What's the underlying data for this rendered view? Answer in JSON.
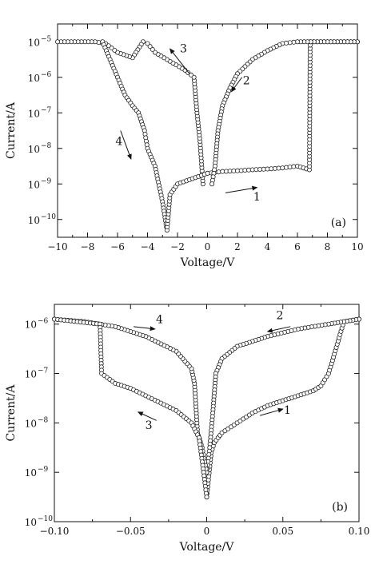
{
  "chart_data": [
    {
      "type": "scatter",
      "panel_label": "(a)",
      "xlabel": "Voltage/V",
      "ylabel": "Current/A",
      "xlim": [
        -10,
        10
      ],
      "ylim": [
        -10.5,
        -4.5
      ],
      "yscale": "log",
      "x_ticks": [
        -10,
        -8,
        -6,
        -4,
        -2,
        0,
        2,
        4,
        6,
        8,
        10
      ],
      "x_tick_labels": [
        "−10",
        "−8",
        "−6",
        "−4",
        "−2",
        "0",
        "2",
        "4",
        "6",
        "8",
        "10"
      ],
      "y_ticks": [
        -10,
        -9,
        -8,
        -7,
        -6,
        -5
      ],
      "y_tick_labels": [
        "10",
        "10",
        "10",
        "10",
        "10",
        "10"
      ],
      "y_tick_exponents": [
        "−10",
        "−9",
        "−8",
        "−7",
        "−6",
        "−5"
      ],
      "grid": false,
      "marker": "open-circle",
      "series": [
        {
          "points": [
            [
              0,
              -8.7
            ],
            [
              1,
              -8.65
            ],
            [
              2,
              -8.63
            ],
            [
              3,
              -8.6
            ],
            [
              4,
              -8.58
            ],
            [
              5,
              -8.55
            ],
            [
              6,
              -8.5
            ],
            [
              6.8,
              -8.6
            ],
            [
              6.85,
              -5.0
            ],
            [
              8,
              -5.0
            ],
            [
              10,
              -5.0
            ]
          ]
        },
        {
          "points": [
            [
              10,
              -5.0
            ],
            [
              6,
              -5.0
            ],
            [
              5,
              -5.05
            ],
            [
              4,
              -5.25
            ],
            [
              3,
              -5.5
            ],
            [
              2,
              -5.9
            ],
            [
              1.5,
              -6.3
            ],
            [
              1,
              -6.8
            ],
            [
              0.7,
              -7.5
            ],
            [
              0.5,
              -8.5
            ],
            [
              0.3,
              -9.0
            ]
          ]
        },
        {
          "points": [
            [
              -0.3,
              -9.0
            ],
            [
              -0.5,
              -7.8
            ],
            [
              -0.7,
              -7.0
            ],
            [
              -0.9,
              -6.0
            ],
            [
              -1.5,
              -5.8
            ],
            [
              -2.5,
              -5.55
            ],
            [
              -3.5,
              -5.3
            ],
            [
              -4.0,
              -5.05
            ],
            [
              -4.3,
              -5.0
            ],
            [
              -5.0,
              -5.45
            ],
            [
              -6.0,
              -5.3
            ],
            [
              -6.8,
              -5.05
            ],
            [
              -7.5,
              -5.0
            ],
            [
              -10,
              -5.0
            ]
          ]
        },
        {
          "points": [
            [
              -7.0,
              -5.0
            ],
            [
              -6.5,
              -5.5
            ],
            [
              -6.0,
              -6.0
            ],
            [
              -5.5,
              -6.5
            ],
            [
              -5.0,
              -6.8
            ],
            [
              -4.6,
              -7.0
            ],
            [
              -4.2,
              -7.5
            ],
            [
              -4.0,
              -8.0
            ],
            [
              -3.5,
              -8.5
            ],
            [
              -3.0,
              -9.5
            ],
            [
              -2.7,
              -10.3
            ],
            [
              -2.5,
              -9.3
            ],
            [
              -2.0,
              -9.0
            ],
            [
              -1.0,
              -8.85
            ],
            [
              0,
              -8.7
            ]
          ]
        }
      ],
      "annotations": [
        {
          "text": "1",
          "x": 3.3,
          "y": -9.47,
          "arrow_from": [
            1.2,
            -9.25
          ],
          "arrow_to": [
            3.3,
            -9.1
          ]
        },
        {
          "text": "2",
          "x": 2.6,
          "y": -6.2,
          "arrow_from": [
            2.3,
            -6.0
          ],
          "arrow_to": [
            1.6,
            -6.4
          ]
        },
        {
          "text": "3",
          "x": -1.6,
          "y": -5.3,
          "arrow_from": [
            -1.2,
            -5.9
          ],
          "arrow_to": [
            -2.5,
            -5.2
          ]
        },
        {
          "text": "4",
          "x": -5.9,
          "y": -7.9,
          "arrow_from": [
            -5.8,
            -7.5
          ],
          "arrow_to": [
            -5.1,
            -8.3
          ]
        }
      ]
    },
    {
      "type": "scatter",
      "panel_label": "(b)",
      "xlabel": "Voltage/V",
      "ylabel": "Current/A",
      "xlim": [
        -0.1,
        0.1
      ],
      "ylim": [
        -10,
        -5.6
      ],
      "yscale": "log",
      "x_ticks": [
        -0.1,
        -0.05,
        0,
        0.05,
        0.1
      ],
      "x_tick_labels": [
        "−0.10",
        "−0.05",
        "0",
        "0.05",
        "0.10"
      ],
      "y_ticks": [
        -10,
        -9,
        -8,
        -7,
        -6
      ],
      "y_tick_labels": [
        "10",
        "10",
        "10",
        "10",
        "10"
      ],
      "y_tick_exponents": [
        "−10",
        "−9",
        "−8",
        "−7",
        "−6"
      ],
      "grid": false,
      "marker": "open-circle",
      "series": [
        {
          "points": [
            [
              0,
              -9.5
            ],
            [
              0.003,
              -8.6
            ],
            [
              0.005,
              -8.4
            ],
            [
              0.01,
              -8.2
            ],
            [
              0.02,
              -8.0
            ],
            [
              0.03,
              -7.8
            ],
            [
              0.04,
              -7.65
            ],
            [
              0.05,
              -7.55
            ],
            [
              0.06,
              -7.45
            ],
            [
              0.07,
              -7.35
            ],
            [
              0.075,
              -7.25
            ],
            [
              0.08,
              -7.0
            ],
            [
              0.082,
              -6.8
            ],
            [
              0.09,
              -5.95
            ],
            [
              0.1,
              -5.9
            ]
          ]
        },
        {
          "points": [
            [
              0.1,
              -5.9
            ],
            [
              0.09,
              -5.95
            ],
            [
              0.08,
              -6.0
            ],
            [
              0.06,
              -6.1
            ],
            [
              0.04,
              -6.25
            ],
            [
              0.02,
              -6.45
            ],
            [
              0.01,
              -6.7
            ],
            [
              0.006,
              -7.0
            ],
            [
              0.004,
              -7.8
            ],
            [
              0.002,
              -8.5
            ],
            [
              0.0,
              -9.0
            ]
          ]
        },
        {
          "points": [
            [
              0.0,
              -9.0
            ],
            [
              -0.003,
              -8.5
            ],
            [
              -0.006,
              -8.2
            ],
            [
              -0.008,
              -7.2
            ],
            [
              -0.01,
              -6.9
            ],
            [
              -0.02,
              -6.55
            ],
            [
              -0.04,
              -6.25
            ],
            [
              -0.06,
              -6.05
            ],
            [
              -0.08,
              -5.95
            ],
            [
              -0.1,
              -5.9
            ]
          ]
        },
        {
          "points": [
            [
              -0.1,
              -5.9
            ],
            [
              -0.07,
              -6.0
            ],
            [
              -0.069,
              -7.0
            ],
            [
              -0.06,
              -7.2
            ],
            [
              -0.05,
              -7.3
            ],
            [
              -0.04,
              -7.45
            ],
            [
              -0.03,
              -7.6
            ],
            [
              -0.02,
              -7.75
            ],
            [
              -0.01,
              -8.0
            ],
            [
              -0.005,
              -8.3
            ],
            [
              -0.002,
              -9.0
            ],
            [
              0,
              -9.5
            ]
          ]
        }
      ],
      "annotations": [
        {
          "text": "1",
          "x": 0.053,
          "y": -7.82,
          "arrow_from": [
            0.035,
            -7.85
          ],
          "arrow_to": [
            0.05,
            -7.72
          ]
        },
        {
          "text": "2",
          "x": 0.048,
          "y": -5.9,
          "arrow_from": [
            0.055,
            -6.05
          ],
          "arrow_to": [
            0.04,
            -6.15
          ]
        },
        {
          "text": "3",
          "x": -0.038,
          "y": -8.12,
          "arrow_from": [
            -0.033,
            -7.95
          ],
          "arrow_to": [
            -0.045,
            -7.78
          ]
        },
        {
          "text": "4",
          "x": -0.031,
          "y": -5.98,
          "arrow_from": [
            -0.048,
            -6.05
          ],
          "arrow_to": [
            -0.034,
            -6.1
          ]
        }
      ]
    }
  ]
}
